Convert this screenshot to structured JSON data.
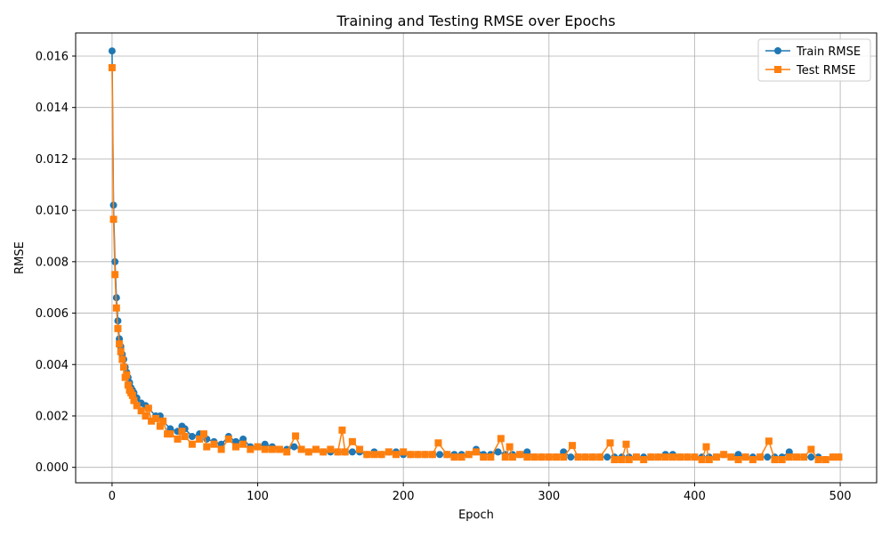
{
  "chart_data": {
    "type": "line",
    "title": "Training and Testing RMSE over Epochs",
    "xlabel": "Epoch",
    "ylabel": "RMSE",
    "xlim": [
      -25,
      525
    ],
    "ylim": [
      -0.0006,
      0.0169
    ],
    "xticks": [
      0,
      100,
      200,
      300,
      400,
      500
    ],
    "xtick_labels": [
      "0",
      "100",
      "200",
      "300",
      "400",
      "500"
    ],
    "yticks": [
      0,
      0.002,
      0.004,
      0.006,
      0.008,
      0.01,
      0.012,
      0.014,
      0.016
    ],
    "ytick_labels": [
      "0.000",
      "0.002",
      "0.004",
      "0.006",
      "0.008",
      "0.010",
      "0.012",
      "0.014",
      "0.016"
    ],
    "grid": true,
    "legend_position": "top-right",
    "series": [
      {
        "name": "Train RMSE",
        "color": "#1f77b4",
        "marker": "circle",
        "x": [
          0,
          1,
          2,
          3,
          4,
          5,
          6,
          7,
          8,
          9,
          10,
          11,
          12,
          13,
          14,
          15,
          17,
          20,
          23,
          25,
          30,
          33,
          35,
          40,
          45,
          48,
          50,
          55,
          60,
          65,
          70,
          75,
          80,
          85,
          90,
          95,
          100,
          105,
          110,
          115,
          120,
          125,
          130,
          135,
          140,
          145,
          150,
          155,
          160,
          165,
          170,
          175,
          180,
          185,
          190,
          195,
          200,
          205,
          210,
          215,
          220,
          225,
          230,
          235,
          240,
          245,
          250,
          255,
          260,
          265,
          270,
          275,
          280,
          285,
          290,
          295,
          300,
          305,
          310,
          315,
          320,
          325,
          330,
          335,
          340,
          345,
          350,
          355,
          360,
          365,
          370,
          375,
          380,
          385,
          390,
          395,
          400,
          405,
          410,
          415,
          420,
          425,
          430,
          435,
          440,
          445,
          450,
          455,
          460,
          465,
          470,
          475,
          480,
          485,
          490,
          495,
          499
        ],
        "values": [
          0.0162,
          0.0102,
          0.008,
          0.0066,
          0.0057,
          0.005,
          0.0047,
          0.0044,
          0.0042,
          0.0039,
          0.0037,
          0.0035,
          0.0033,
          0.0031,
          0.003,
          0.0029,
          0.0027,
          0.0025,
          0.0024,
          0.0023,
          0.002,
          0.002,
          0.0018,
          0.0015,
          0.0014,
          0.0016,
          0.0015,
          0.0012,
          0.0013,
          0.0011,
          0.001,
          0.0009,
          0.0012,
          0.001,
          0.0011,
          0.0008,
          0.0008,
          0.0009,
          0.0008,
          0.0007,
          0.0007,
          0.0008,
          0.0007,
          0.0006,
          0.0007,
          0.0006,
          0.0006,
          0.0006,
          0.0006,
          0.0006,
          0.0006,
          0.0005,
          0.0006,
          0.0005,
          0.0006,
          0.0006,
          0.0005,
          0.0005,
          0.0005,
          0.0005,
          0.0005,
          0.0005,
          0.0005,
          0.0005,
          0.0005,
          0.0005,
          0.0007,
          0.0005,
          0.0005,
          0.0006,
          0.0005,
          0.0005,
          0.0005,
          0.0006,
          0.0004,
          0.0004,
          0.0004,
          0.0004,
          0.0006,
          0.0004,
          0.0004,
          0.0004,
          0.0004,
          0.0004,
          0.0004,
          0.0004,
          0.0004,
          0.0004,
          0.0004,
          0.0004,
          0.0004,
          0.0004,
          0.0005,
          0.0005,
          0.0004,
          0.0004,
          0.0004,
          0.0004,
          0.0004,
          0.0004,
          0.0005,
          0.0004,
          0.0005,
          0.0004,
          0.0004,
          0.0004,
          0.0004,
          0.0004,
          0.0004,
          0.0006,
          0.0004,
          0.0004,
          0.0004,
          0.0004,
          0.0003,
          0.0004,
          0.0004
        ]
      },
      {
        "name": "Test RMSE",
        "color": "#ff7f0e",
        "marker": "square",
        "x": [
          0,
          1,
          2,
          3,
          4,
          5,
          6,
          7,
          8,
          9,
          10,
          11,
          12,
          13,
          14,
          15,
          17,
          20,
          23,
          25,
          27,
          30,
          33,
          35,
          38,
          40,
          45,
          48,
          50,
          55,
          60,
          63,
          65,
          70,
          75,
          80,
          85,
          90,
          95,
          100,
          105,
          110,
          115,
          120,
          126,
          130,
          135,
          140,
          145,
          150,
          155,
          158,
          160,
          165,
          170,
          175,
          180,
          185,
          190,
          195,
          200,
          205,
          210,
          215,
          220,
          224,
          230,
          235,
          240,
          245,
          250,
          255,
          260,
          267,
          270,
          273,
          275,
          280,
          285,
          290,
          295,
          300,
          305,
          310,
          316,
          320,
          325,
          330,
          335,
          342,
          345,
          350,
          353,
          355,
          360,
          365,
          370,
          375,
          380,
          385,
          390,
          395,
          400,
          405,
          408,
          410,
          415,
          420,
          425,
          430,
          435,
          440,
          445,
          451,
          455,
          460,
          465,
          470,
          475,
          480,
          485,
          490,
          495,
          499
        ],
        "values": [
          0.01555,
          0.00965,
          0.0075,
          0.0062,
          0.0054,
          0.0048,
          0.0045,
          0.0042,
          0.0039,
          0.0035,
          0.0036,
          0.0032,
          0.003,
          0.0029,
          0.0028,
          0.0026,
          0.0024,
          0.0022,
          0.002,
          0.0023,
          0.0018,
          0.0019,
          0.0016,
          0.0018,
          0.0013,
          0.0013,
          0.0011,
          0.0014,
          0.0012,
          0.0009,
          0.0011,
          0.0013,
          0.0008,
          0.0009,
          0.0007,
          0.0011,
          0.0008,
          0.0009,
          0.0007,
          0.0008,
          0.0007,
          0.0007,
          0.0007,
          0.0006,
          0.00122,
          0.0007,
          0.0006,
          0.0007,
          0.0006,
          0.0007,
          0.0006,
          0.00145,
          0.0006,
          0.001,
          0.0007,
          0.0005,
          0.0005,
          0.0005,
          0.0006,
          0.0005,
          0.0006,
          0.0005,
          0.0005,
          0.0005,
          0.0005,
          0.00095,
          0.0005,
          0.0004,
          0.0004,
          0.0005,
          0.0006,
          0.0004,
          0.0004,
          0.00112,
          0.0004,
          0.0008,
          0.0004,
          0.0005,
          0.0004,
          0.0004,
          0.0004,
          0.0004,
          0.0004,
          0.0004,
          0.00085,
          0.0004,
          0.0004,
          0.0004,
          0.0004,
          0.00095,
          0.0003,
          0.0003,
          0.0009,
          0.0003,
          0.0004,
          0.0003,
          0.0004,
          0.0004,
          0.0004,
          0.0004,
          0.0004,
          0.0004,
          0.0004,
          0.0003,
          0.0008,
          0.0003,
          0.0004,
          0.0005,
          0.0004,
          0.0003,
          0.0004,
          0.0003,
          0.0004,
          0.00102,
          0.0003,
          0.0003,
          0.0004,
          0.0004,
          0.0004,
          0.0007,
          0.0003,
          0.0003,
          0.0004,
          0.0004
        ]
      }
    ]
  }
}
